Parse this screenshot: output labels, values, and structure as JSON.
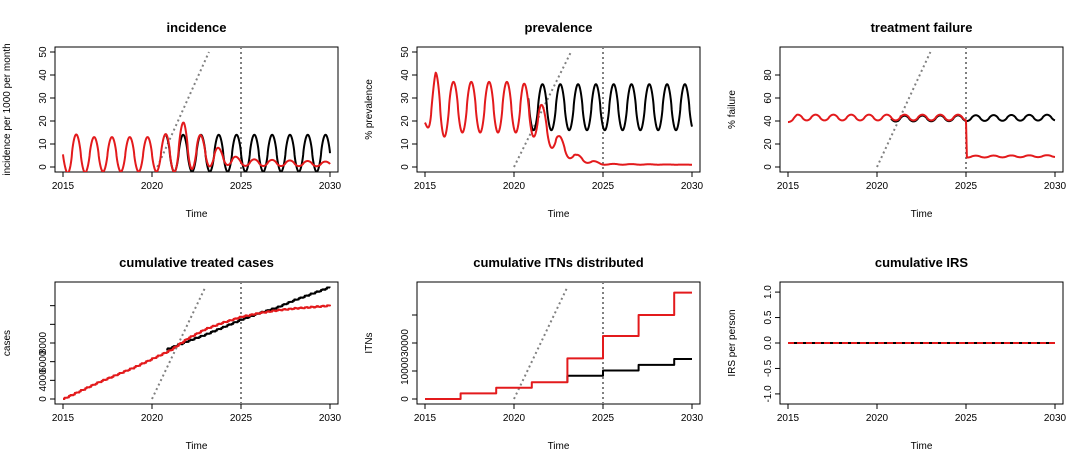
{
  "colors": {
    "baseline": "#000000",
    "intervention": "#e31a1c",
    "reference_line": "#808080"
  },
  "chart_data": [
    {
      "type": "line",
      "title": "incidence",
      "xlabel": "Time",
      "ylabel": "incidence per 1000 per month",
      "xlim": [
        2015,
        2030
      ],
      "ylim": [
        0,
        50
      ],
      "xticks": [
        "2015",
        "2020",
        "2025",
        "2030"
      ],
      "yticks": [
        "0",
        "10",
        "20",
        "30",
        "40",
        "50"
      ],
      "vline_x": 2025,
      "dotted_diagonal": [
        [
          2020.3,
          0
        ],
        [
          2023.2,
          50
        ]
      ],
      "series": [
        {
          "color": "baseline",
          "oscillating": true,
          "period": 1,
          "phase_peak": 0.75,
          "x_start": 2020.8,
          "points": [
            [
              2020.8,
              6
            ],
            [
              2025,
              6
            ],
            [
              2030,
              6
            ]
          ],
          "amplitude": [
            [
              2020.8,
              8
            ],
            [
              2030,
              8
            ]
          ]
        },
        {
          "color": "intervention",
          "oscillating": true,
          "period": 1,
          "phase_peak": 0.75,
          "x_start": 2015,
          "points": [
            [
              2015,
              5.5
            ],
            [
              2020.5,
              5.5
            ],
            [
              2022,
              9
            ],
            [
              2023,
              6
            ],
            [
              2024,
              4
            ],
            [
              2025,
              2
            ],
            [
              2030,
              1.3
            ]
          ],
          "amplitude": [
            [
              2015,
              7
            ],
            [
              2015.5,
              9
            ],
            [
              2016.5,
              7.5
            ],
            [
              2020.5,
              7.5
            ],
            [
              2021.8,
              11
            ],
            [
              2023,
              6
            ],
            [
              2024,
              3
            ],
            [
              2025,
              1.5
            ],
            [
              2030,
              1
            ]
          ]
        }
      ]
    },
    {
      "type": "line",
      "title": "prevalence",
      "xlabel": "Time",
      "ylabel": "% prevalence",
      "xlim": [
        2015,
        2030
      ],
      "ylim": [
        0,
        50
      ],
      "xticks": [
        "2015",
        "2020",
        "2025",
        "2030"
      ],
      "yticks": [
        "0",
        "10",
        "20",
        "30",
        "40",
        "50"
      ],
      "vline_x": 2025,
      "dotted_diagonal": [
        [
          2020,
          0
        ],
        [
          2023.2,
          50
        ]
      ],
      "series": [
        {
          "color": "baseline",
          "oscillating": true,
          "period": 1,
          "phase_peak": 0.6,
          "x_start": 2020.8,
          "points": [
            [
              2020.8,
              26
            ],
            [
              2030,
              26
            ]
          ],
          "amplitude": [
            [
              2020.8,
              10
            ],
            [
              2030,
              10
            ]
          ]
        },
        {
          "color": "intervention",
          "oscillating": true,
          "period": 1,
          "phase_peak": 0.6,
          "x_start": 2015,
          "points": [
            [
              2015,
              21
            ],
            [
              2015.6,
              26
            ],
            [
              2017,
              26
            ],
            [
              2020.5,
              26
            ],
            [
              2021.5,
              20
            ],
            [
              2022.5,
              10
            ],
            [
              2023.5,
              4
            ],
            [
              2024.5,
              2
            ],
            [
              2025,
              1.2
            ],
            [
              2030,
              1
            ]
          ],
          "amplitude": [
            [
              2015,
              2
            ],
            [
              2015.6,
              15
            ],
            [
              2016.5,
              11
            ],
            [
              2020.5,
              11
            ],
            [
              2021.5,
              8
            ],
            [
              2022.5,
              4
            ],
            [
              2023.5,
              1.5
            ],
            [
              2025,
              0.2
            ],
            [
              2030,
              0
            ]
          ]
        }
      ]
    },
    {
      "type": "line",
      "title": "treatment failure",
      "xlabel": "Time",
      "ylabel": "% failure",
      "xlim": [
        2015,
        2030
      ],
      "ylim": [
        0,
        100
      ],
      "xticks": [
        "2015",
        "2020",
        "2025",
        "2030"
      ],
      "yticks": [
        "0",
        "20",
        "40",
        "60",
        "80"
      ],
      "vline_x": 2025,
      "dotted_diagonal": [
        [
          2020,
          0
        ],
        [
          2023,
          100
        ]
      ],
      "series": [
        {
          "color": "baseline",
          "oscillating": true,
          "period": 1,
          "phase_peak": 0.55,
          "x_start": 2020.8,
          "points": [
            [
              2020.8,
              42
            ],
            [
              2030,
              43
            ]
          ],
          "amplitude": [
            [
              2020.8,
              2.5
            ],
            [
              2030,
              2.5
            ]
          ]
        },
        {
          "color": "intervention",
          "oscillating": true,
          "period": 1,
          "phase_peak": 0.55,
          "x_start": 2015,
          "points": [
            [
              2015,
              40
            ],
            [
              2015.5,
              43
            ],
            [
              2025,
              43
            ],
            [
              2025.05,
              9
            ],
            [
              2030,
              9.5
            ]
          ],
          "amplitude": [
            [
              2015,
              1
            ],
            [
              2015.5,
              2.5
            ],
            [
              2025,
              2.5
            ],
            [
              2025.05,
              0.8
            ],
            [
              2030,
              0.8
            ]
          ]
        }
      ]
    },
    {
      "type": "line",
      "title": "cumulative treated cases",
      "xlabel": "Time",
      "ylabel": "cases",
      "xlim": [
        2015,
        2030
      ],
      "ylim": [
        0,
        12000
      ],
      "xticks": [
        "2015",
        "2020",
        "2025",
        "2030"
      ],
      "yticks": [
        "0",
        "4000",
        "6000",
        "8000"
      ],
      "ytick_values": [
        0,
        2000,
        4000,
        6000,
        8000,
        10000
      ],
      "vline_x": 2025,
      "dotted_diagonal": [
        [
          2020,
          0
        ],
        [
          2023,
          12000
        ]
      ],
      "series": [
        {
          "color": "baseline",
          "steps": 180,
          "x_start": 2020.8,
          "points": [
            [
              2020.8,
              5300
            ],
            [
              2022,
              6200
            ],
            [
              2023,
              6900
            ],
            [
              2024,
              7700
            ],
            [
              2025,
              8500
            ],
            [
              2026,
              9200
            ],
            [
              2027,
              9800
            ],
            [
              2028,
              10600
            ],
            [
              2029,
              11300
            ],
            [
              2030,
              12000
            ]
          ]
        },
        {
          "color": "intervention",
          "steps": 180,
          "x_start": 2015,
          "points": [
            [
              2015,
              0
            ],
            [
              2016,
              900
            ],
            [
              2017,
              1800
            ],
            [
              2018,
              2600
            ],
            [
              2019,
              3400
            ],
            [
              2020,
              4300
            ],
            [
              2021,
              5200
            ],
            [
              2022,
              6500
            ],
            [
              2023,
              7500
            ],
            [
              2024,
              8200
            ],
            [
              2025,
              8800
            ],
            [
              2026,
              9200
            ],
            [
              2027,
              9500
            ],
            [
              2028,
              9700
            ],
            [
              2029,
              9850
            ],
            [
              2030,
              10000
            ]
          ]
        }
      ]
    },
    {
      "type": "line",
      "title": "cumulative ITNs distributed",
      "xlabel": "Time",
      "ylabel": "ITNs",
      "xlim": [
        2015,
        2030
      ],
      "ylim": [
        0,
        40000
      ],
      "xticks": [
        "2015",
        "2020",
        "2025",
        "2030"
      ],
      "yticks": [
        "0",
        "10000",
        "30000"
      ],
      "ytick_values": [
        0,
        10000,
        20000,
        30000
      ],
      "vline_x": 2025,
      "dotted_diagonal": [
        [
          2020,
          0
        ],
        [
          2023,
          40000
        ]
      ],
      "series": [
        {
          "color": "baseline",
          "stepwise": true,
          "steps_xy": [
            [
              2023,
              6000
            ],
            [
              2023,
              8300
            ],
            [
              2025,
              8300
            ],
            [
              2025,
              10200
            ],
            [
              2027,
              10200
            ],
            [
              2027,
              12200
            ],
            [
              2029,
              12200
            ],
            [
              2029,
              14300
            ],
            [
              2030,
              14300
            ]
          ]
        },
        {
          "color": "intervention",
          "stepwise": true,
          "steps_xy": [
            [
              2015,
              0
            ],
            [
              2017,
              0
            ],
            [
              2017,
              2000
            ],
            [
              2019,
              2000
            ],
            [
              2019,
              4000
            ],
            [
              2021,
              4000
            ],
            [
              2021,
              6000
            ],
            [
              2023,
              6000
            ],
            [
              2023,
              14500
            ],
            [
              2025,
              14500
            ],
            [
              2025,
              22500
            ],
            [
              2027,
              22500
            ],
            [
              2027,
              30000
            ],
            [
              2029,
              30000
            ],
            [
              2029,
              38000
            ],
            [
              2030,
              38000
            ]
          ]
        }
      ]
    },
    {
      "type": "line",
      "title": "cumulative IRS",
      "xlabel": "Time",
      "ylabel": "IRS per person",
      "xlim": [
        2015,
        2030
      ],
      "ylim": [
        -1.1,
        1.1
      ],
      "xticks": [
        "2015",
        "2020",
        "2025",
        "2030"
      ],
      "yticks": [
        "-1.0",
        "-0.5",
        "0.0",
        "0.5",
        "1.0"
      ],
      "ytick_values": [
        -1.0,
        -0.5,
        0.0,
        0.5,
        1.0
      ],
      "series": [
        {
          "color": "baseline",
          "points": [
            [
              2015,
              0
            ],
            [
              2030,
              0
            ]
          ]
        },
        {
          "color": "intervention",
          "dashed": true,
          "points": [
            [
              2015,
              0
            ],
            [
              2030,
              0
            ]
          ]
        }
      ]
    }
  ]
}
